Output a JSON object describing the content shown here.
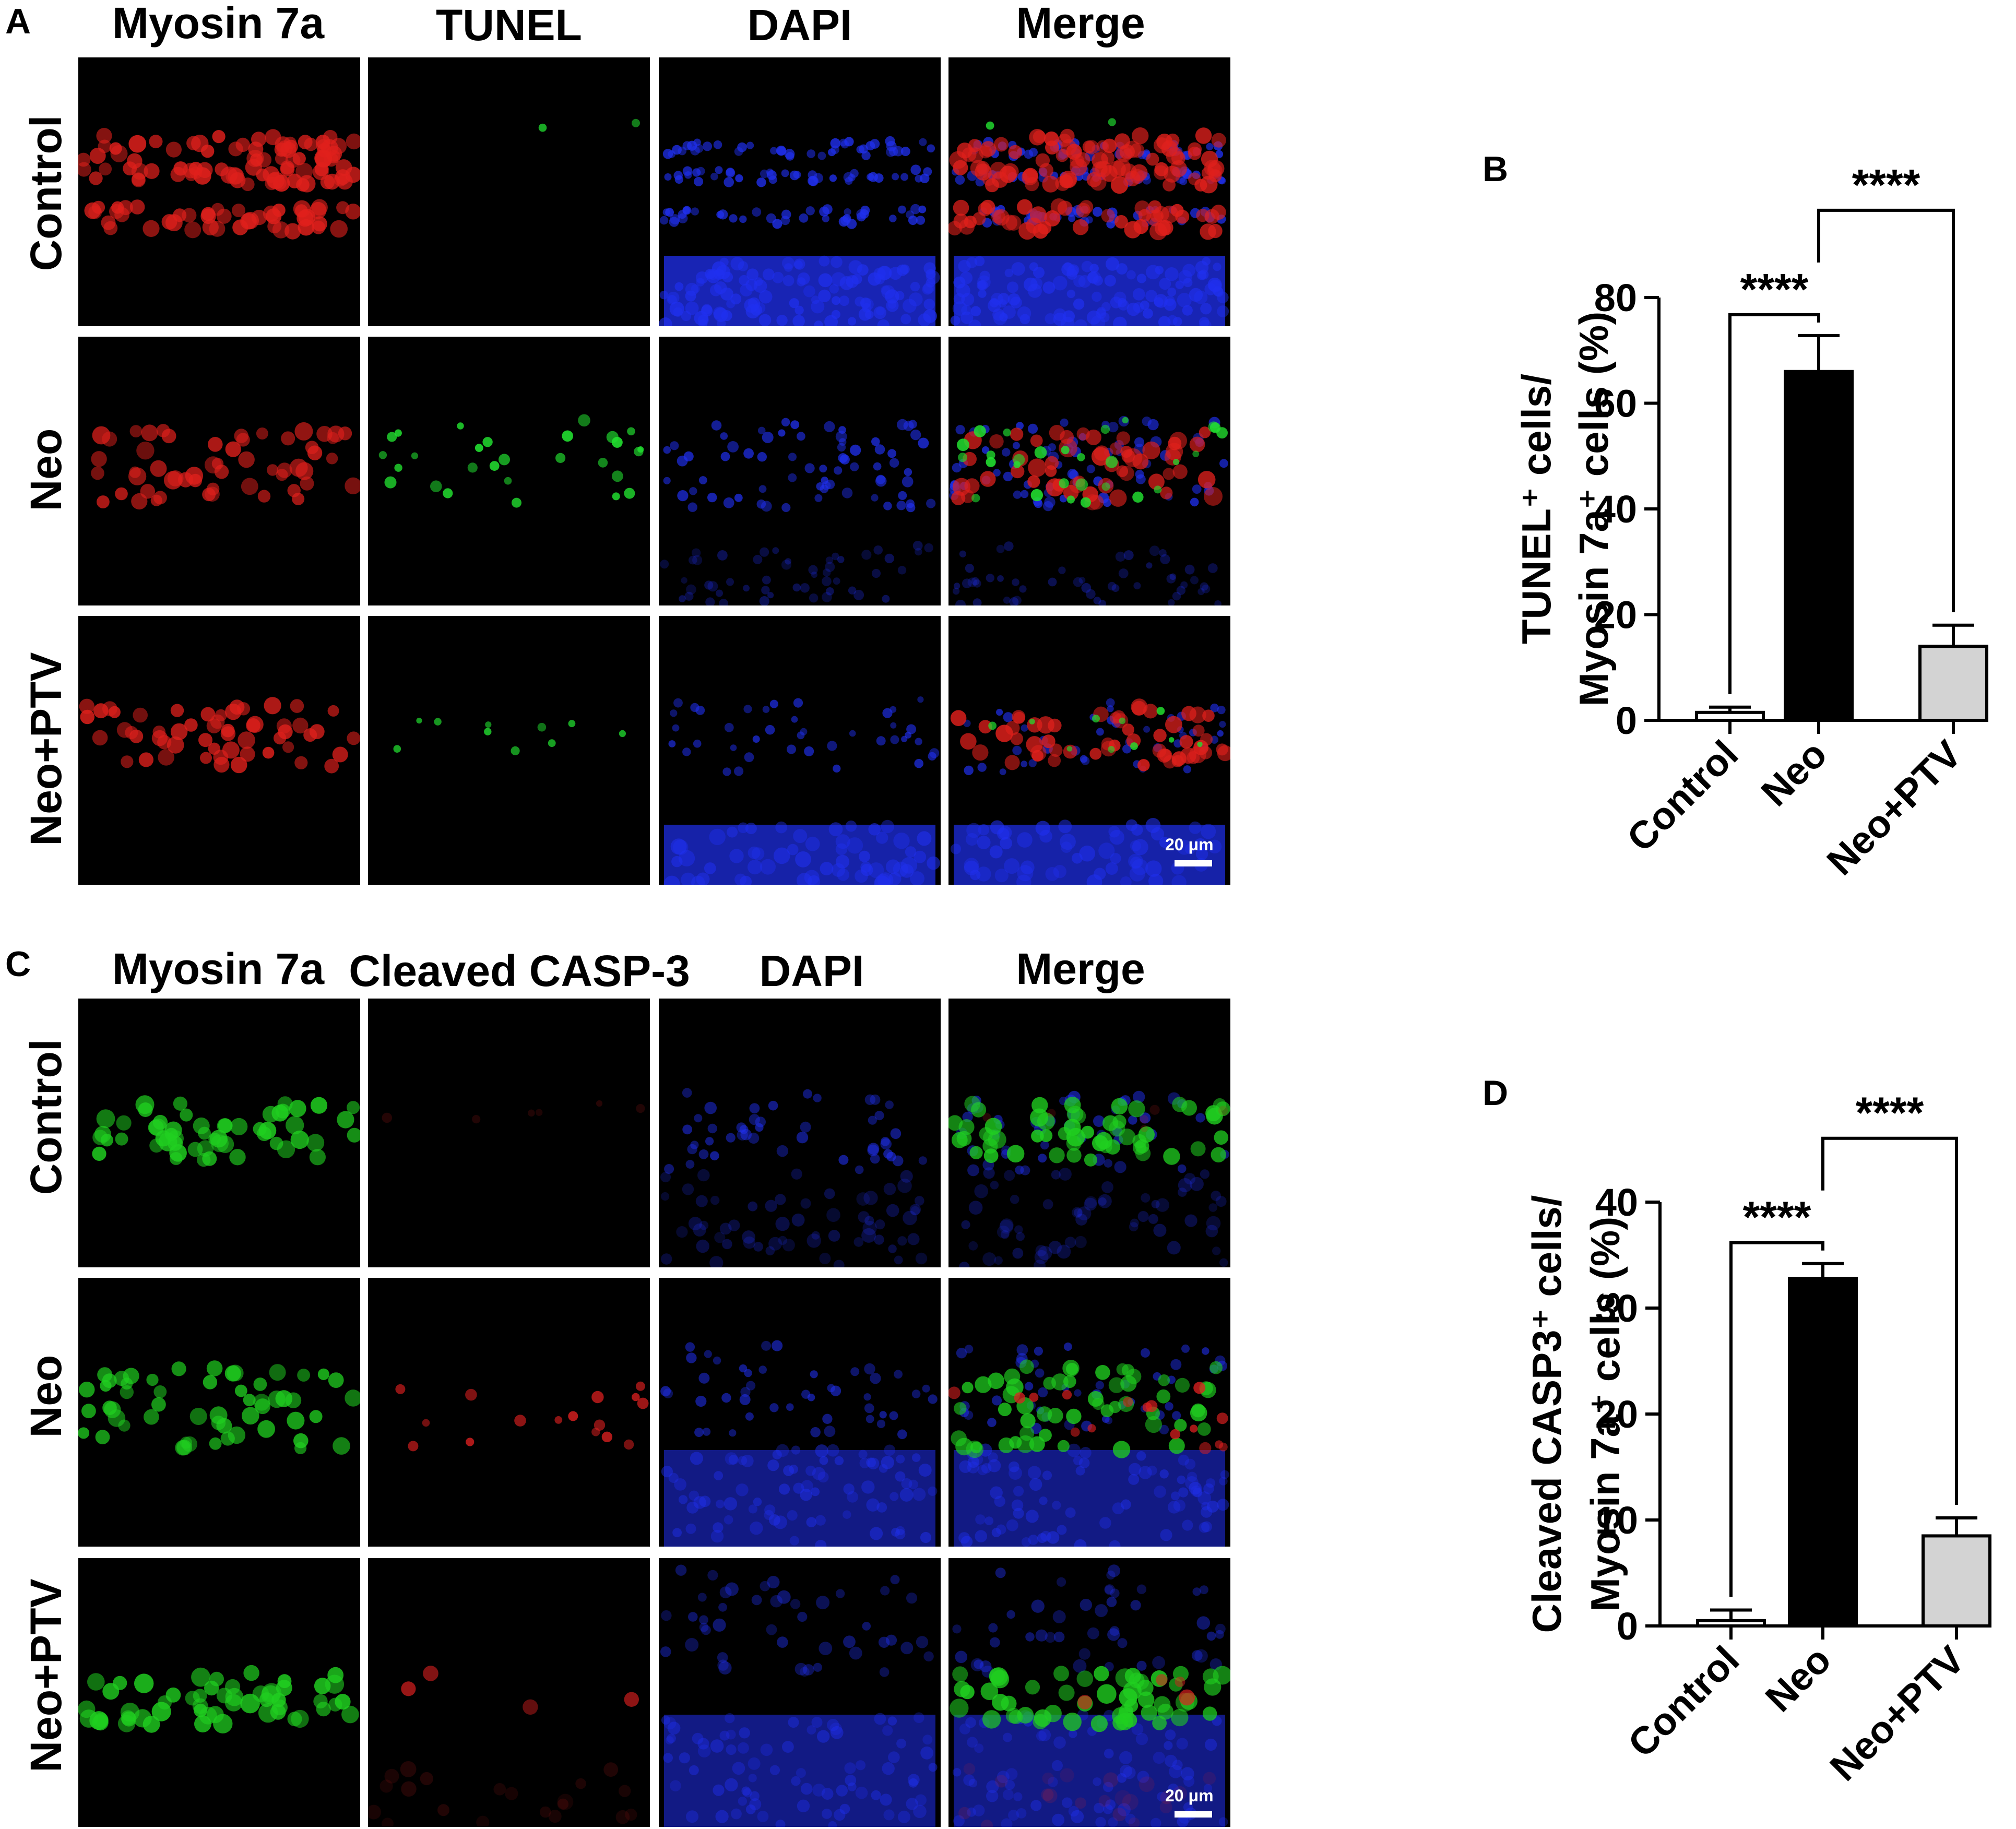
{
  "panel_labels": {
    "a": "A",
    "b": "B",
    "c": "C",
    "d": "D"
  },
  "figure_a": {
    "columns": [
      "Myosin 7a",
      "TUNEL",
      "DAPI",
      "Merge"
    ],
    "rows": [
      "Control",
      "Neo",
      "Neo+PTV"
    ],
    "scale_bar": "20 μm"
  },
  "figure_c": {
    "columns": [
      "Myosin 7a",
      "Cleaved CASP-3",
      "DAPI",
      "Merge"
    ],
    "rows": [
      "Control",
      "Neo",
      "Neo+PTV"
    ],
    "scale_bar": "20 μm"
  },
  "colors": {
    "myosin_a": "#e0201c",
    "tunel": "#22e030",
    "dapi": "#2030f0",
    "myosin_c": "#20d020",
    "casp3": "#e02020"
  },
  "chart_data": [
    {
      "type": "bar",
      "panel": "B",
      "categories": [
        "Control",
        "Neo",
        "Neo+PTV"
      ],
      "values": [
        1.5,
        66,
        14
      ],
      "errors": [
        1.0,
        6.8,
        4.0
      ],
      "bar_colors": [
        "#ffffff",
        "#000000",
        "#d3d3d3"
      ],
      "ylabel_line1": "TUNEL⁺ cells/",
      "ylabel_line2": "Myosin 7a⁺ cells (%)",
      "ylim": [
        0,
        80
      ],
      "yticks": [
        "0",
        "20",
        "40",
        "60",
        "80"
      ],
      "significance": [
        "****",
        "****"
      ]
    },
    {
      "type": "bar",
      "panel": "D",
      "categories": [
        "Control",
        "Neo",
        "Neo+PTV"
      ],
      "values": [
        0.5,
        32.8,
        8.5
      ],
      "errors": [
        1.0,
        1.4,
        1.7
      ],
      "bar_colors": [
        "#ffffff",
        "#000000",
        "#d3d3d3"
      ],
      "ylabel_line1": "Cleaved CASP3⁺ cells/",
      "ylabel_line2": "Myosin 7a⁺ cells (%)",
      "ylim": [
        0,
        40
      ],
      "yticks": [
        "0",
        "10",
        "20",
        "30",
        "40"
      ],
      "significance": [
        "****",
        "****"
      ]
    }
  ]
}
